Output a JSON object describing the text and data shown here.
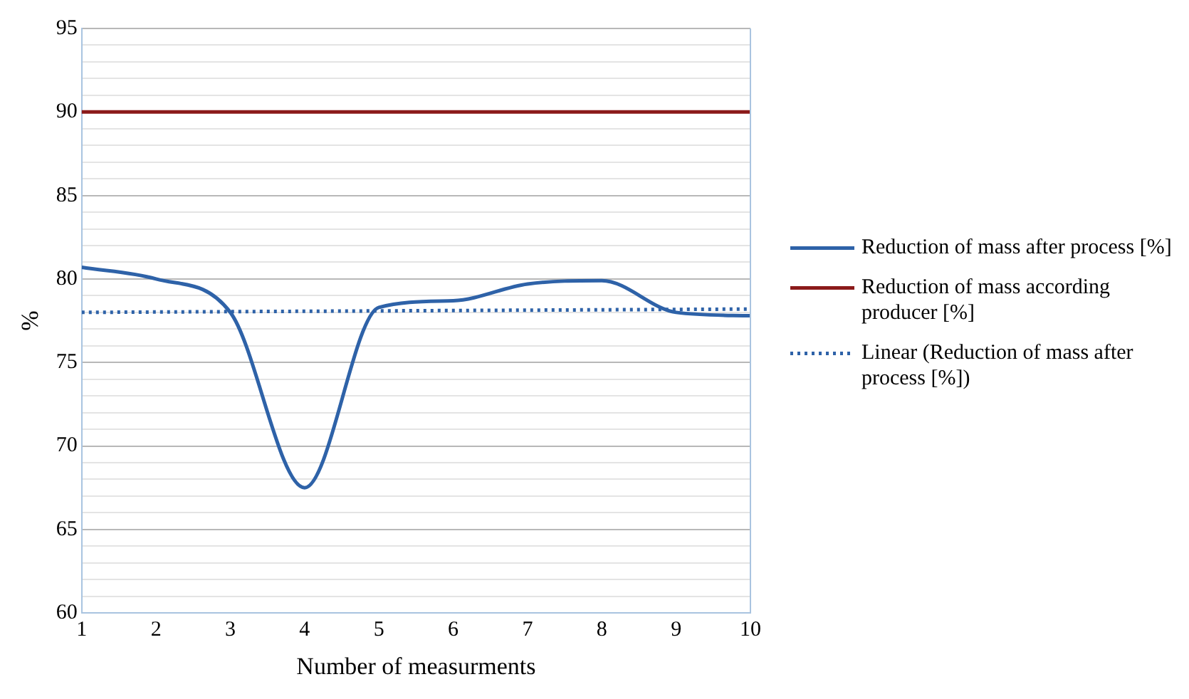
{
  "chart_data": {
    "type": "line",
    "xlabel": "Number of measurments",
    "ylabel": "%",
    "x": [
      1,
      2,
      3,
      4,
      5,
      6,
      7,
      8,
      9,
      10
    ],
    "series": [
      {
        "name": "Reduction of mass after process [%]",
        "color": "#2e62a8",
        "values": [
          80.7,
          80.0,
          78.0,
          67.5,
          78.3,
          78.7,
          79.7,
          79.9,
          78.0,
          77.8
        ]
      },
      {
        "name": "Linear (Reduction of mass after process [%])",
        "color": "#2e62a8",
        "line_style": "dotted",
        "x": [
          1,
          10
        ],
        "values": [
          78.0,
          78.2
        ]
      }
    ],
    "ref_lines": [
      {
        "axis": "y",
        "value": 90,
        "label": "Reduction of mass according producer [%]",
        "color": "#8b1a1a"
      }
    ],
    "xlim": [
      1,
      10
    ],
    "xticks": [
      1,
      2,
      3,
      4,
      5,
      6,
      7,
      8,
      9,
      10
    ],
    "ylim": [
      60,
      95
    ],
    "yticks": [
      60,
      {
        "value": 61,
        "label": null
      },
      {
        "value": 62,
        "label": null
      },
      {
        "value": 63,
        "label": null
      },
      {
        "value": 64,
        "label": null
      },
      65,
      {
        "value": 66,
        "label": null
      },
      {
        "value": 67,
        "label": null
      },
      {
        "value": 68,
        "label": null
      },
      {
        "value": 69,
        "label": null
      },
      70,
      {
        "value": 71,
        "label": null
      },
      {
        "value": 72,
        "label": null
      },
      {
        "value": 73,
        "label": null
      },
      {
        "value": 74,
        "label": null
      },
      75,
      {
        "value": 76,
        "label": null
      },
      {
        "value": 77,
        "label": null
      },
      {
        "value": 78,
        "label": null
      },
      {
        "value": 79,
        "label": null
      },
      80,
      {
        "value": 81,
        "label": null
      },
      {
        "value": 82,
        "label": null
      },
      {
        "value": 83,
        "label": null
      },
      {
        "value": 84,
        "label": null
      },
      85,
      {
        "value": 86,
        "label": null
      },
      {
        "value": 87,
        "label": null
      },
      {
        "value": 88,
        "label": null
      },
      {
        "value": 89,
        "label": null
      },
      90,
      {
        "value": 91,
        "label": null
      },
      {
        "value": 92,
        "label": null
      },
      {
        "value": 93,
        "label": null
      },
      {
        "value": 94,
        "label": null
      },
      95
    ],
    "grid": "y",
    "legend": "right",
    "marker": "none",
    "line_style": "solid"
  }
}
